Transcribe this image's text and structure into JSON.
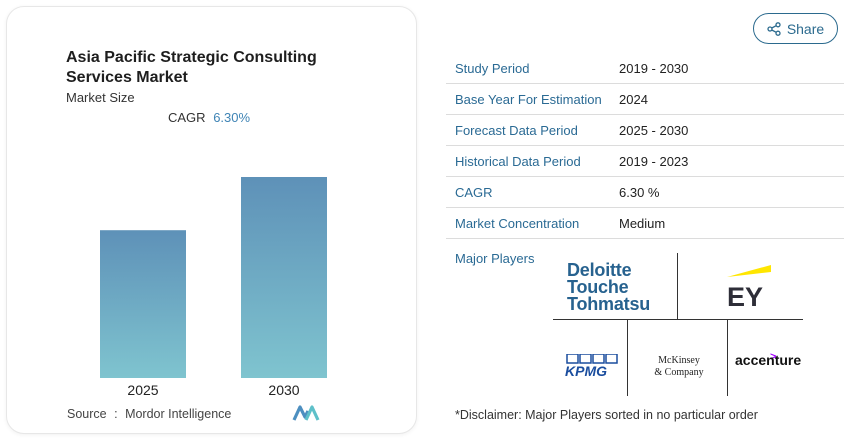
{
  "card": {
    "title": "Asia Pacific Strategic Consulting Services Market",
    "subtitle": "Market Size",
    "cagr_label": "CAGR",
    "cagr_value": "6.30%",
    "source_label": "Source",
    "source_sep": ":",
    "source_value": "Mordor Intelligence"
  },
  "chart_data": {
    "type": "bar",
    "categories": [
      "2025",
      "2030"
    ],
    "values": [
      1.0,
      1.36
    ],
    "title": "",
    "xlabel": "",
    "ylabel": "",
    "ylim": [
      0,
      1.36
    ],
    "grid": false,
    "bar_color_top": "#5e91b8",
    "bar_color_bottom": "#7fc4cf"
  },
  "share": {
    "label": "Share",
    "icon": "share-icon"
  },
  "table": [
    {
      "label": "Study Period",
      "value": "2019 - 2030"
    },
    {
      "label": "Base Year For Estimation",
      "value": "2024"
    },
    {
      "label": "Forecast Data Period",
      "value": "2025 - 2030"
    },
    {
      "label": "Historical Data Period",
      "value": "2019 - 2023"
    },
    {
      "label": "CAGR",
      "value": "6.30 %"
    },
    {
      "label": "Market Concentration",
      "value": "Medium"
    }
  ],
  "players": {
    "label": "Major Players",
    "deloitte": [
      "Deloitte",
      "Touche",
      "Tohmatsu"
    ],
    "ey": "EY",
    "kpmg": "KPMG",
    "mckinsey": [
      "McKinsey",
      "& Company"
    ],
    "accenture": "accenture"
  },
  "disclaimer": "*Disclaimer: Major Players sorted in no particular order",
  "colors": {
    "accent": "#2a6a94",
    "deloitte_blue": "#27628f",
    "kpmg_blue": "#1a4d9e",
    "ey_yellow": "#ffe600",
    "accenture_purple": "#a100ff"
  }
}
